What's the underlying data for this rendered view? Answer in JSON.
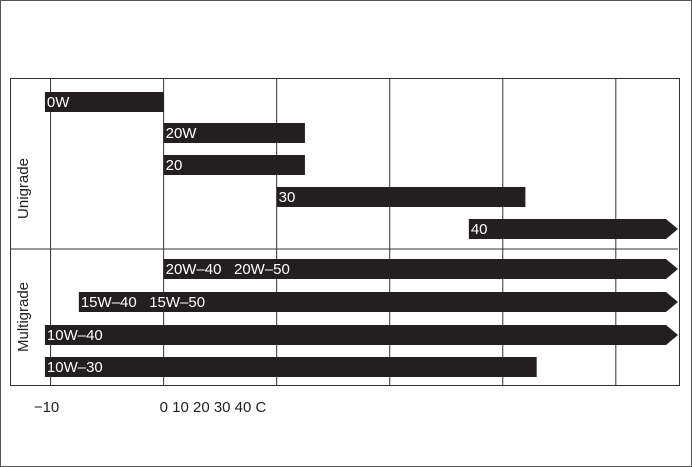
{
  "chart_data": {
    "type": "range-bar",
    "groups": [
      {
        "name": "Unigrade",
        "rows": [
          0,
          1,
          2,
          3,
          4
        ]
      },
      {
        "name": "Multigrade",
        "rows": [
          5,
          6,
          7,
          8
        ]
      }
    ],
    "categories": [
      "0W",
      "20W",
      "20",
      "30",
      "40",
      "20W–40   20W–50",
      "15W–40   15W–50",
      "10W–40",
      "10W–30"
    ],
    "start": [
      -10.5,
      0,
      0,
      10,
      27,
      0,
      -7.5,
      -10.5,
      -10.5
    ],
    "end": [
      0,
      12.5,
      12.5,
      32,
      null,
      null,
      null,
      null,
      33
    ],
    "color": "#231f20",
    "xlim": [
      -13.5,
      45.5
    ],
    "xticks": [
      {
        "value": -10,
        "label": "−10"
      },
      {
        "value": 0,
        "label": "0 10 20 30 40 C"
      }
    ],
    "xgrid": [
      10,
      20,
      30,
      40
    ]
  }
}
